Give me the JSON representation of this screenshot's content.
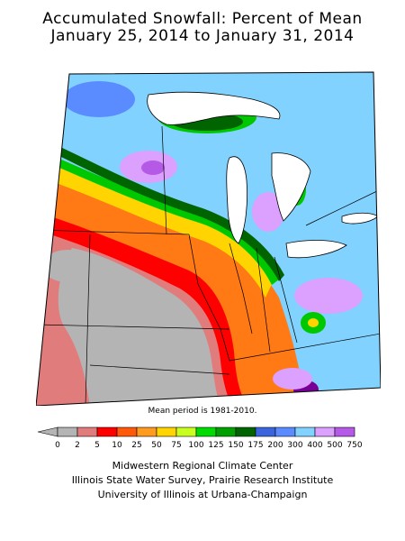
{
  "title": {
    "line1": "Accumulated Snowfall: Percent of Mean",
    "line2": "January 25, 2014 to January 31, 2014"
  },
  "mean_note": "Mean period is 1981-2010.",
  "legend": {
    "under_color": "#b4b4b4",
    "labels": [
      "0",
      "2",
      "5",
      "10",
      "25",
      "50",
      "75",
      "100",
      "125",
      "150",
      "175",
      "200",
      "300",
      "400",
      "500",
      "750"
    ],
    "colors": [
      "#b4b4b4",
      "#e17c7c",
      "#ff0000",
      "#ff5a0a",
      "#ff9b1e",
      "#ffd400",
      "#c8ff1e",
      "#00dc00",
      "#00a000",
      "#006400",
      "#3c64dc",
      "#5a8cff",
      "#82d2ff",
      "#dca0ff",
      "#b45ae6",
      "#780096"
    ]
  },
  "map_colors": {
    "sea": "#ffffff",
    "gray": "#b4b4b4",
    "pink": "#e17c7c",
    "red": "#ff0000",
    "orange": "#ff7a14",
    "yellow": "#ffd400",
    "lime": "#c8ff1e",
    "green": "#00c800",
    "dgreen": "#006400",
    "blue": "#5a8cff",
    "lblue": "#82d2ff",
    "lav": "#dca0ff",
    "purple": "#b45ae6",
    "dpurple": "#780096"
  },
  "credits": [
    "Midwestern Regional Climate Center",
    "Illinois State Water Survey, Prairie Research Institute",
    "University of Illinois at Urbana-Champaign"
  ]
}
